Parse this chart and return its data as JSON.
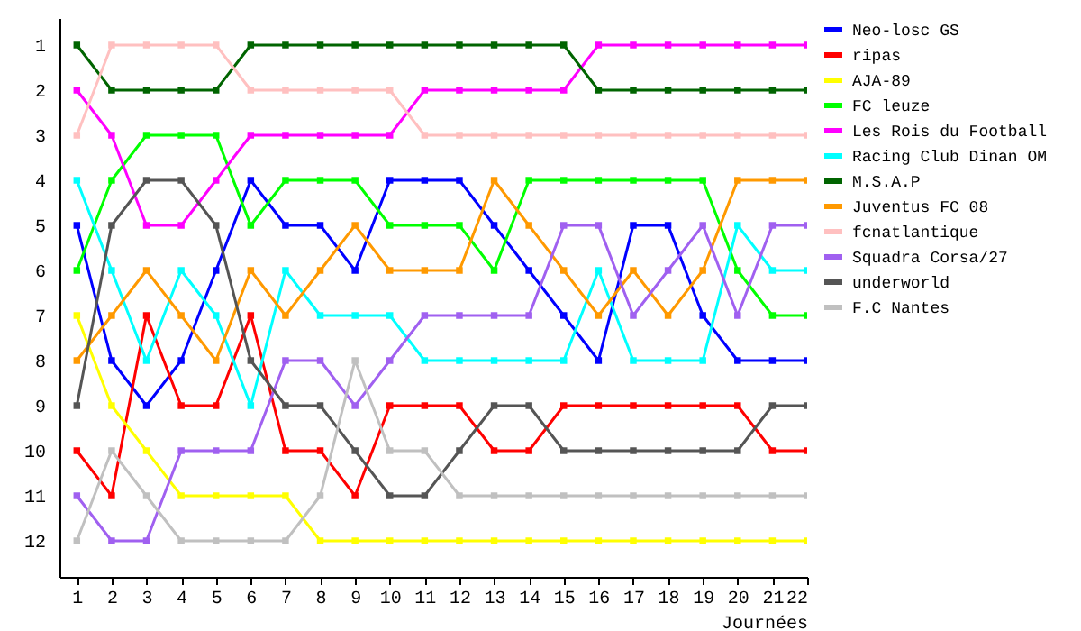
{
  "chart_data": {
    "type": "line",
    "xlabel": "Journées",
    "x": [
      1,
      2,
      3,
      4,
      5,
      6,
      7,
      8,
      9,
      10,
      11,
      12,
      13,
      14,
      15,
      16,
      17,
      18,
      19,
      20,
      21,
      22
    ],
    "xlim": [
      0.5,
      22
    ],
    "xticks": [
      1,
      2,
      3,
      4,
      5,
      6,
      7,
      8,
      9,
      10,
      11,
      12,
      13,
      14,
      15,
      16,
      17,
      18,
      19,
      20,
      21,
      22
    ],
    "ylim": [
      12.8,
      0.4
    ],
    "yticks": [
      1,
      2,
      3,
      4,
      5,
      6,
      7,
      8,
      9,
      10,
      11,
      12
    ],
    "grid": false,
    "legend": "right",
    "marker": "square",
    "line_style": "solid",
    "series": [
      {
        "name": "Neo-losc GS",
        "color": "#0000ff",
        "values": [
          5,
          8,
          9,
          8,
          6,
          4,
          5,
          5,
          6,
          4,
          4,
          4,
          5,
          6,
          7,
          8,
          5,
          5,
          7,
          8,
          8,
          8
        ]
      },
      {
        "name": "ripas",
        "color": "#ff0000",
        "values": [
          10,
          11,
          7,
          9,
          9,
          7,
          10,
          10,
          11,
          9,
          9,
          9,
          10,
          10,
          9,
          9,
          9,
          9,
          9,
          9,
          10,
          10
        ]
      },
      {
        "name": "AJA-89",
        "color": "#ffff00",
        "values": [
          7,
          9,
          10,
          11,
          11,
          11,
          11,
          12,
          12,
          12,
          12,
          12,
          12,
          12,
          12,
          12,
          12,
          12,
          12,
          12,
          12,
          12
        ]
      },
      {
        "name": "FC leuze",
        "color": "#00ff00",
        "values": [
          6,
          4,
          3,
          3,
          3,
          5,
          4,
          4,
          4,
          5,
          5,
          5,
          6,
          4,
          4,
          4,
          4,
          4,
          4,
          6,
          7,
          7
        ]
      },
      {
        "name": "Les Rois du Football",
        "color": "#ff00ff",
        "values": [
          2,
          3,
          5,
          5,
          4,
          3,
          3,
          3,
          3,
          3,
          2,
          2,
          2,
          2,
          2,
          1,
          1,
          1,
          1,
          1,
          1,
          1
        ]
      },
      {
        "name": "Racing Club Dinan OM",
        "color": "#00ffff",
        "values": [
          4,
          6,
          8,
          6,
          7,
          9,
          6,
          7,
          7,
          7,
          8,
          8,
          8,
          8,
          8,
          6,
          8,
          8,
          8,
          5,
          6,
          6
        ]
      },
      {
        "name": "M.S.A.P",
        "color": "#006400",
        "values": [
          1,
          2,
          2,
          2,
          2,
          1,
          1,
          1,
          1,
          1,
          1,
          1,
          1,
          1,
          1,
          2,
          2,
          2,
          2,
          2,
          2,
          2
        ]
      },
      {
        "name": "Juventus FC 08",
        "color": "#ff9900",
        "values": [
          8,
          7,
          6,
          7,
          8,
          6,
          7,
          6,
          5,
          6,
          6,
          6,
          4,
          5,
          6,
          7,
          6,
          7,
          6,
          4,
          4,
          4
        ]
      },
      {
        "name": "fcnatlantique",
        "color": "#ffc0c0",
        "values": [
          3,
          1,
          1,
          1,
          1,
          2,
          2,
          2,
          2,
          2,
          3,
          3,
          3,
          3,
          3,
          3,
          3,
          3,
          3,
          3,
          3,
          3
        ]
      },
      {
        "name": "Squadra Corsa/27",
        "color": "#a060f0",
        "values": [
          11,
          12,
          12,
          10,
          10,
          10,
          8,
          8,
          9,
          8,
          7,
          7,
          7,
          7,
          5,
          5,
          7,
          6,
          5,
          7,
          5,
          5
        ]
      },
      {
        "name": "underworld",
        "color": "#555555",
        "values": [
          9,
          5,
          4,
          4,
          5,
          8,
          9,
          9,
          10,
          11,
          11,
          10,
          9,
          9,
          10,
          10,
          10,
          10,
          10,
          10,
          9,
          9
        ]
      },
      {
        "name": "F.C Nantes",
        "color": "#c0c0c0",
        "values": [
          12,
          10,
          11,
          12,
          12,
          12,
          12,
          11,
          8,
          10,
          10,
          11,
          11,
          11,
          11,
          11,
          11,
          11,
          11,
          11,
          11,
          11
        ]
      }
    ]
  }
}
